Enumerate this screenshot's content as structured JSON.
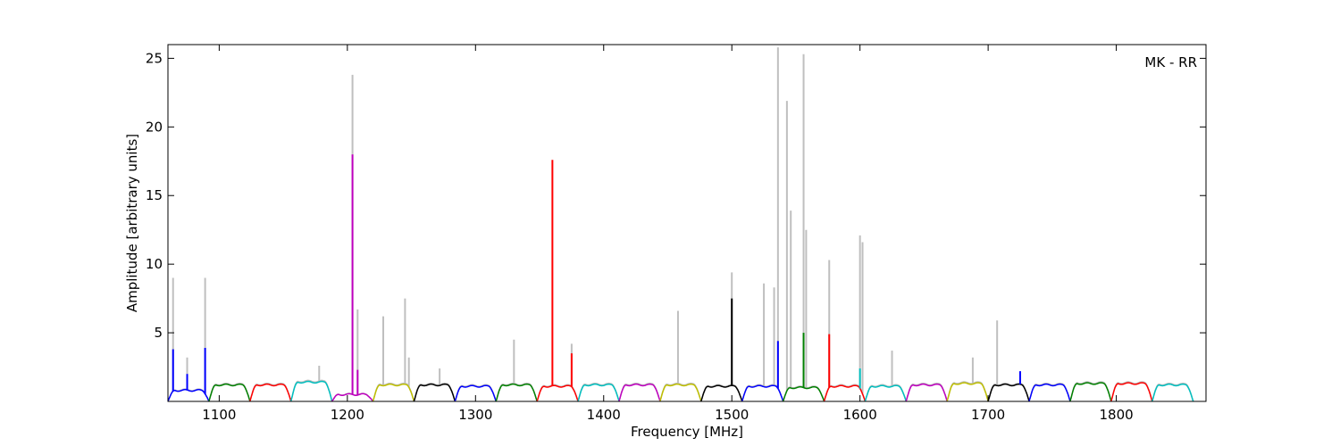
{
  "chart_data": {
    "type": "line",
    "title": "",
    "xlabel": "Frequency [MHz]",
    "ylabel": "Amplitude [arbitrary units]",
    "xlim": [
      1060,
      1870
    ],
    "ylim": [
      0,
      26
    ],
    "xticks": [
      1100,
      1200,
      1300,
      1400,
      1500,
      1600,
      1700,
      1800
    ],
    "yticks": [
      5,
      10,
      15,
      20,
      25
    ],
    "annotation": "MK - RR",
    "legend": "none",
    "grid": false,
    "raw_color": "#bfbfbf",
    "band_colors": [
      "#0000ff",
      "#008000",
      "#ff0000",
      "#00bfbf",
      "#bf00bf",
      "#bfbf00",
      "#000000"
    ],
    "band_width_mhz": 32,
    "band_starts_mhz": [
      1060,
      1092,
      1124,
      1156,
      1188,
      1220,
      1252,
      1284,
      1316,
      1348,
      1380,
      1412,
      1444,
      1476,
      1508,
      1540,
      1572,
      1604,
      1636,
      1668,
      1700,
      1732,
      1764,
      1796,
      1828
    ],
    "band_levels": [
      0.8,
      1.2,
      1.2,
      1.4,
      0.5,
      1.2,
      1.2,
      1.1,
      1.2,
      1.1,
      1.2,
      1.2,
      1.2,
      1.1,
      1.1,
      1.0,
      1.1,
      1.1,
      1.2,
      1.3,
      1.2,
      1.2,
      1.3,
      1.3,
      1.2
    ],
    "raw_spikes": [
      {
        "x": 1064,
        "y": 9.0
      },
      {
        "x": 1075,
        "y": 3.2
      },
      {
        "x": 1089,
        "y": 9.0
      },
      {
        "x": 1178,
        "y": 2.6
      },
      {
        "x": 1204,
        "y": 23.8
      },
      {
        "x": 1208,
        "y": 6.7
      },
      {
        "x": 1228,
        "y": 6.2
      },
      {
        "x": 1245,
        "y": 7.5
      },
      {
        "x": 1248,
        "y": 3.2
      },
      {
        "x": 1272,
        "y": 2.4
      },
      {
        "x": 1330,
        "y": 4.5
      },
      {
        "x": 1375,
        "y": 4.2
      },
      {
        "x": 1458,
        "y": 6.6
      },
      {
        "x": 1500,
        "y": 9.4
      },
      {
        "x": 1525,
        "y": 8.6
      },
      {
        "x": 1533,
        "y": 8.3
      },
      {
        "x": 1536,
        "y": 25.8
      },
      {
        "x": 1543,
        "y": 21.9
      },
      {
        "x": 1546,
        "y": 13.9
      },
      {
        "x": 1556,
        "y": 25.3
      },
      {
        "x": 1558,
        "y": 12.5
      },
      {
        "x": 1576,
        "y": 10.3
      },
      {
        "x": 1600,
        "y": 12.1
      },
      {
        "x": 1602,
        "y": 11.6
      },
      {
        "x": 1625,
        "y": 3.7
      },
      {
        "x": 1688,
        "y": 3.2
      },
      {
        "x": 1707,
        "y": 5.9
      }
    ],
    "band_spikes": [
      {
        "x": 1064,
        "y": 3.8,
        "band": 0
      },
      {
        "x": 1075,
        "y": 2.0,
        "band": 0
      },
      {
        "x": 1089,
        "y": 3.9,
        "band": 0
      },
      {
        "x": 1204,
        "y": 18.0,
        "band": 4
      },
      {
        "x": 1208,
        "y": 2.3,
        "band": 4
      },
      {
        "x": 1360,
        "y": 17.6,
        "band": 9
      },
      {
        "x": 1375,
        "y": 3.5,
        "band": 9
      },
      {
        "x": 1500,
        "y": 7.5,
        "band": 13
      },
      {
        "x": 1536,
        "y": 4.4,
        "band": 14
      },
      {
        "x": 1556,
        "y": 5.0,
        "band": 15
      },
      {
        "x": 1576,
        "y": 4.9,
        "band": 16
      },
      {
        "x": 1600,
        "y": 2.4,
        "band": 17
      },
      {
        "x": 1725,
        "y": 2.2,
        "band": 21
      }
    ]
  }
}
